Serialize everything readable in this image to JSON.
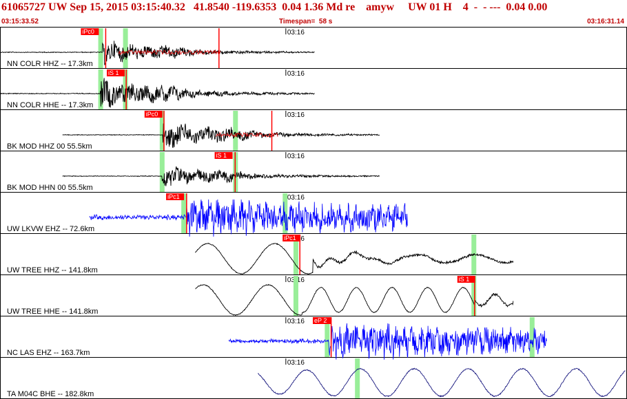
{
  "header": {
    "event_line": "61065727 UW Sep 15, 2015 03:15:40.32   41.8540 -119.6353  0.04 1.36 Md re    amyw     UW 01 H    4  -  - ---  0.04 0.00",
    "start_time": "03:15:33.52",
    "timespan": "Timespan=  58 s",
    "end_time": "03:16:31.14",
    "color": "#c00000"
  },
  "chart_data": {
    "type": "line",
    "time_axis": {
      "start": "03:15:33.52",
      "end": "03:16:31.14",
      "span_s": 58,
      "minute_mark": "03:16",
      "minute_mark_offset_s": 26.5
    },
    "colors": {
      "trace": "#000000",
      "blue_trace": "#0000ff",
      "tree_trace": "#000000",
      "navy_trace": "#1a1a80",
      "pick_red": "#ff0000",
      "pick_green": "#99ee99",
      "phase_box": "#ff0000",
      "marker_red": "#dd0000"
    },
    "channels": [
      {
        "label": "NN COLR HHZ -- 17.3km",
        "color": "#000000",
        "data_start_s": 0,
        "data_end_s": 29.2,
        "wave": "local",
        "onset_s": 9.5,
        "amp": 0.6,
        "noise": 0.06,
        "period_s": 0.25,
        "pick": {
          "label": "iPc0",
          "at_s": 9.5,
          "box_at_s": 7.5
        },
        "green_bands_s": [
          9.3,
          11.6
        ],
        "red_lines_s": [
          9.8,
          20.3
        ],
        "red_coda": [
          11,
          20.5
        ]
      },
      {
        "label": "NN COLR HHE -- 17.3km",
        "color": "#000000",
        "data_start_s": 0,
        "data_end_s": 29.2,
        "wave": "local",
        "onset_s": 9.3,
        "amp": 0.8,
        "noise": 0.06,
        "period_s": 0.2,
        "pick": {
          "label": "iS 1",
          "at_s": 11.6,
          "box_at_s": 9.9
        },
        "green_bands_s": [
          9.3,
          11.6
        ],
        "red_lines_s": [
          11.7
        ]
      },
      {
        "label": "BK MOD HHZ 00 55.5km",
        "color": "#000000",
        "data_start_s": 5.8,
        "data_end_s": 35.2,
        "wave": "local",
        "onset_s": 15.1,
        "amp": 0.7,
        "noise": 0.05,
        "period_s": 0.35,
        "pick": {
          "label": "iPc0",
          "at_s": 15.0,
          "box_at_s": 13.4
        },
        "green_bands_s": [
          15.0,
          21.8
        ],
        "red_lines_s": [
          15.2,
          25.2
        ],
        "red_coda": [
          20,
          25.8
        ]
      },
      {
        "label": "BK MOD HHN 00 55.5km",
        "color": "#000000",
        "data_start_s": 5.8,
        "data_end_s": 35.2,
        "wave": "local",
        "onset_s": 15.0,
        "amp": 0.55,
        "noise": 0.05,
        "period_s": 0.3,
        "pick": {
          "label": "iS 1",
          "at_s": 21.8,
          "box_at_s": 19.9
        },
        "green_bands_s": [
          15.0,
          21.8
        ],
        "red_lines_s": [
          21.8
        ]
      },
      {
        "label": "UW LKVW EHZ -- 72.6km",
        "color": "#0000ff",
        "data_start_s": 8.3,
        "data_end_s": 37.8,
        "wave": "noisy",
        "onset_s": 17.3,
        "amp": 0.85,
        "noise": 0.35,
        "period_s": 0.12,
        "pick": {
          "label": "iPc1",
          "at_s": 17.3,
          "box_at_s": 15.4
        },
        "green_bands_s": [
          17.0,
          26.4
        ],
        "red_lines_s": [
          17.3
        ]
      },
      {
        "label": "UW TREE HHZ -- 141.8km",
        "color": "#000000",
        "data_start_s": 18.1,
        "data_end_s": 47.6,
        "wave": "tree_z",
        "pick": {
          "label": "iPc1",
          "at_s": 27.8,
          "box_at_s": 26.2
        },
        "green_bands_s": [
          27.4,
          43.9
        ],
        "red_lines_s": [
          27.8
        ]
      },
      {
        "label": "UW TREE HHE -- 141.8km",
        "color": "#000000",
        "data_start_s": 18.1,
        "data_end_s": 47.6,
        "wave": "tree_e",
        "pick": {
          "label": "iS 1",
          "at_s": 44.0,
          "box_at_s": 42.4
        },
        "green_bands_s": [
          27.4,
          43.9
        ],
        "red_lines_s": [
          44.0
        ]
      },
      {
        "label": "NC LAS EHZ -- 163.7km",
        "color": "#0000ff",
        "data_start_s": 21.2,
        "data_end_s": 50.7,
        "wave": "noisy",
        "onset_s": 30.5,
        "amp": 0.85,
        "noise": 0.3,
        "period_s": 0.12,
        "pick": {
          "label": "eP 2",
          "at_s": 30.7,
          "box_at_s": 29.0
        },
        "green_bands_s": [
          30.3,
          49.3
        ],
        "red_lines_s": [
          30.7
        ]
      },
      {
        "label": "TA M04C BHE -- 182.8km",
        "color": "#1a1a80",
        "data_start_s": 23.9,
        "data_end_s": 58.0,
        "wave": "ta",
        "pick": null,
        "green_bands_s": [
          33.1
        ],
        "red_lines_s": []
      }
    ]
  }
}
